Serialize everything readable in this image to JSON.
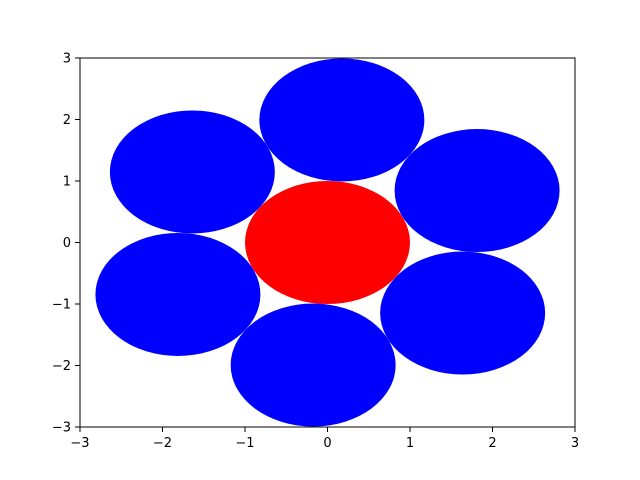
{
  "chart_data": {
    "type": "scatter",
    "title": "",
    "xlabel": "",
    "ylabel": "",
    "xlim": [
      -3,
      3
    ],
    "ylim": [
      -3,
      3
    ],
    "grid": false,
    "x_ticks": [
      "−3",
      "−2",
      "−1",
      "0",
      "1",
      "2",
      "3"
    ],
    "y_ticks": [
      "−3",
      "−2",
      "−1",
      "0",
      "1",
      "2",
      "3"
    ],
    "x_tick_values": [
      -3,
      -2,
      -1,
      0,
      1,
      2,
      3
    ],
    "y_tick_values": [
      -3,
      -2,
      -1,
      0,
      1,
      2,
      3
    ],
    "circles": [
      {
        "cx": 0,
        "cy": 0,
        "r": 1,
        "color": "#ff0000"
      },
      {
        "cx": 1.813,
        "cy": 0.845,
        "r": 1,
        "color": "#0000ff"
      },
      {
        "cx": 0.174,
        "cy": 1.992,
        "r": 1,
        "color": "#0000ff"
      },
      {
        "cx": -1.638,
        "cy": 1.147,
        "r": 1,
        "color": "#0000ff"
      },
      {
        "cx": -1.813,
        "cy": -0.845,
        "r": 1,
        "color": "#0000ff"
      },
      {
        "cx": -0.174,
        "cy": -1.992,
        "r": 1,
        "color": "#0000ff"
      },
      {
        "cx": 1.638,
        "cy": -1.147,
        "r": 1,
        "color": "#0000ff"
      }
    ]
  }
}
